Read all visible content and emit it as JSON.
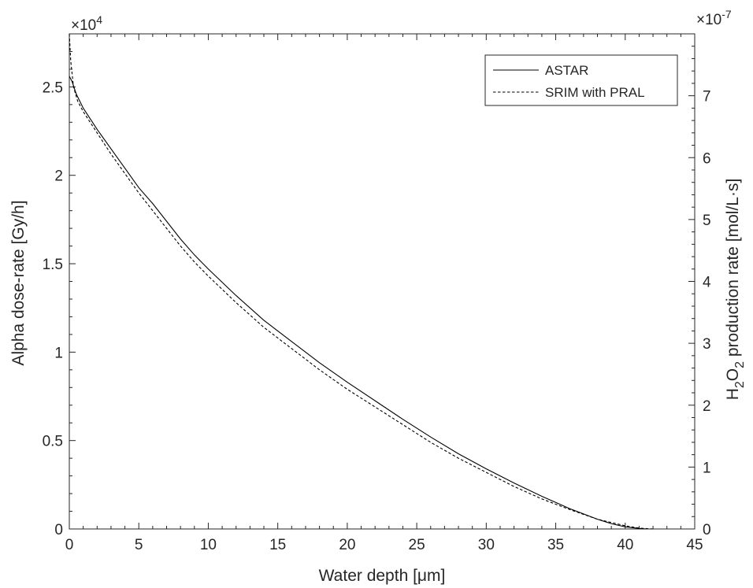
{
  "chart_data": {
    "type": "line",
    "xlabel": "Water depth [μm]",
    "ylabel_left": "Alpha dose-rate [Gy/h]",
    "ylabel_right": {
      "parts": [
        {
          "text": "H",
          "sub": false
        },
        {
          "text": "2",
          "sub": true
        },
        {
          "text": "O",
          "sub": false
        },
        {
          "text": "2",
          "sub": true
        },
        {
          "text": " production rate [mol/L·s]",
          "sub": false
        }
      ]
    },
    "xlim": [
      0,
      45
    ],
    "ylim_left": [
      0,
      2.8
    ],
    "ylim_right": [
      0,
      8
    ],
    "left_exponent": {
      "prefix": "×10",
      "power": "4"
    },
    "right_exponent": {
      "prefix": "×10",
      "power": "-7"
    },
    "x_ticks": [
      0,
      5,
      10,
      15,
      20,
      25,
      30,
      35,
      40,
      45
    ],
    "x_tick_labels": [
      "0",
      "5",
      "10",
      "15",
      "20",
      "25",
      "30",
      "35",
      "40",
      "45"
    ],
    "y_left_ticks": [
      0,
      0.5,
      1,
      1.5,
      2,
      2.5
    ],
    "y_left_tick_labels": [
      "0",
      "0.5",
      "1",
      "1.5",
      "2",
      "2.5"
    ],
    "y_right_ticks": [
      0,
      1,
      2,
      3,
      4,
      5,
      6,
      7
    ],
    "y_right_tick_labels": [
      "0",
      "1",
      "2",
      "3",
      "4",
      "5",
      "6",
      "7"
    ],
    "grid": false,
    "legend": {
      "position": "top-right"
    },
    "series": [
      {
        "name": "ASTAR",
        "line_style": "solid",
        "color": "#000000",
        "x": [
          0,
          0.2,
          0.5,
          1,
          2,
          3,
          4,
          5,
          6,
          7,
          8,
          9,
          10,
          12,
          14,
          16,
          18,
          20,
          22,
          24,
          26,
          28,
          30,
          32,
          34,
          36,
          38,
          39,
          40,
          41,
          41.5
        ],
        "y": [
          2.56,
          2.53,
          2.46,
          2.38,
          2.26,
          2.15,
          2.04,
          1.93,
          1.84,
          1.74,
          1.64,
          1.55,
          1.47,
          1.32,
          1.18,
          1.06,
          0.94,
          0.83,
          0.725,
          0.62,
          0.52,
          0.425,
          0.34,
          0.26,
          0.185,
          0.115,
          0.055,
          0.03,
          0.012,
          0.003,
          0
        ]
      },
      {
        "name": "SRIM with PRAL",
        "line_style": "dashed",
        "color": "#000000",
        "x": [
          0,
          0.1,
          0.3,
          0.6,
          1,
          2,
          3,
          4,
          5,
          6,
          7,
          8,
          9,
          10,
          12,
          14,
          16,
          18,
          20,
          22,
          24,
          26,
          28,
          30,
          32,
          34,
          36,
          38,
          40,
          41,
          42
        ],
        "y": [
          2.8,
          2.65,
          2.5,
          2.42,
          2.36,
          2.24,
          2.12,
          2.01,
          1.9,
          1.8,
          1.7,
          1.6,
          1.51,
          1.43,
          1.28,
          1.14,
          1.02,
          0.9,
          0.79,
          0.69,
          0.59,
          0.49,
          0.4,
          0.32,
          0.24,
          0.17,
          0.11,
          0.055,
          0.018,
          0.005,
          0
        ]
      }
    ]
  }
}
